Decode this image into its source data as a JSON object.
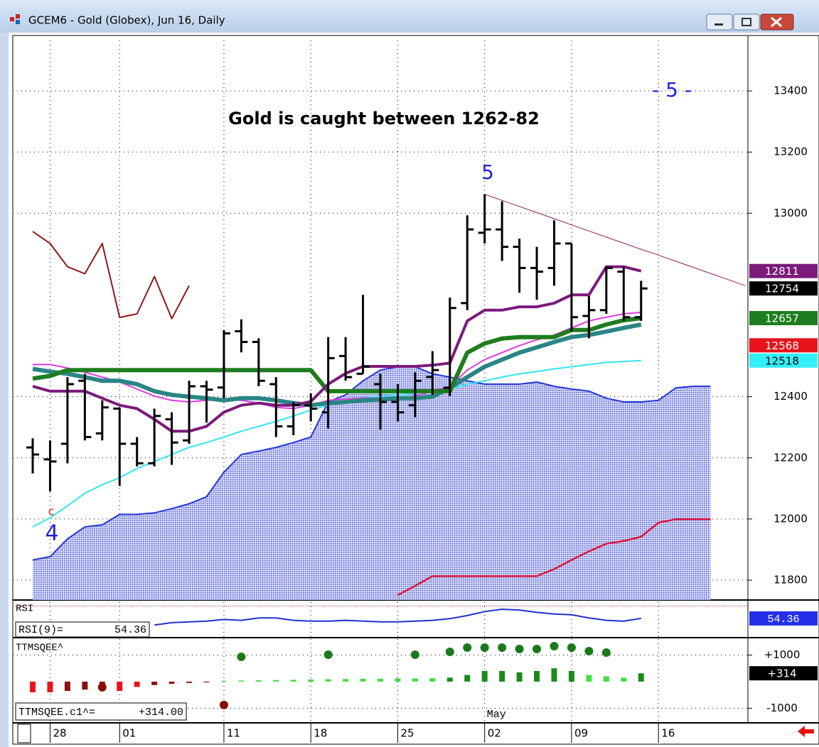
{
  "window": {
    "title": "GCEM6 - Gold (Globex), Jun 16, Daily"
  },
  "chart_data": [
    {
      "type": "ohlc",
      "categories": [
        null,
        "28",
        null,
        null,
        null,
        "01",
        null,
        null,
        null,
        null,
        null,
        "11",
        null,
        null,
        null,
        null,
        "18",
        null,
        null,
        null,
        null,
        "25",
        null,
        null,
        null,
        null,
        "02",
        null,
        null,
        null,
        null,
        "09",
        null,
        null,
        null,
        null,
        "16",
        null,
        null,
        null,
        null,
        null
      ],
      "month_label": "May",
      "open": [
        12234,
        12195,
        12246,
        12452,
        12280,
        12361,
        12246,
        12182,
        12326,
        12257,
        12434,
        12430,
        12614,
        12579,
        12441,
        12303,
        12372,
        12349,
        12533,
        12475,
        12441,
        12383,
        12372,
        12464,
        12429,
        12706,
        12936,
        12947,
        12890,
        12821,
        12821,
        12901,
        12664,
        12683,
        12809,
        12660,
        null,
        null,
        null,
        null,
        null,
        null
      ],
      "high": [
        12264,
        12257,
        12464,
        12475,
        12388,
        12365,
        12268,
        12361,
        12349,
        12452,
        12452,
        12618,
        12653,
        12591,
        12464,
        12383,
        12411,
        12595,
        12595,
        12733,
        12475,
        12441,
        12480,
        12549,
        12724,
        12993,
        13062,
        13039,
        12917,
        12890,
        12977,
        12901,
        12729,
        12825,
        12825,
        12779,
        null,
        null,
        null,
        null,
        null,
        null
      ],
      "low": [
        12149,
        12090,
        12182,
        12257,
        12257,
        12108,
        12172,
        12172,
        12177,
        12246,
        12315,
        12395,
        12545,
        12434,
        12268,
        12274,
        12319,
        12296,
        12452,
        12475,
        12292,
        12319,
        12333,
        12406,
        12402,
        12683,
        12901,
        12844,
        12740,
        12717,
        12763,
        12614,
        12591,
        12671,
        12648,
        12648,
        null,
        null,
        null,
        null,
        null,
        null
      ],
      "close": [
        12211,
        12188,
        12441,
        12268,
        12365,
        12246,
        12182,
        12337,
        12250,
        12434,
        12423,
        12607,
        12579,
        12452,
        12303,
        12372,
        12361,
        12526,
        12464,
        12498,
        12383,
        12349,
        12452,
        12487,
        12690,
        12947,
        12947,
        12890,
        12821,
        12809,
        12901,
        12660,
        12683,
        12821,
        12660,
        12754,
        null,
        null,
        null,
        null,
        null,
        null
      ],
      "bar_color": "#000000",
      "ylim": [
        11735,
        13565
      ],
      "yticks": [
        11800,
        12000,
        12200,
        12400,
        13000,
        13200,
        13400
      ],
      "grid": true,
      "cloud": {
        "color": "#2436d8",
        "values": [
          11866,
          11877,
          11935,
          11974,
          11981,
          12015,
          12015,
          12020,
          12034,
          12050,
          12073,
          12153,
          12211,
          12222,
          12234,
          12250,
          12268,
          12383,
          12406,
          12452,
          12487,
          12498,
          12498,
          12475,
          12464,
          12452,
          12441,
          12441,
          12441,
          12448,
          12434,
          12425,
          12418,
          12395,
          12383,
          12383,
          12388,
          12429,
          12434,
          12434,
          null,
          null
        ]
      },
      "lines": [
        {
          "color": "#33e6f2",
          "width": 2,
          "values": [
            11974,
            12004,
            12043,
            12084,
            12112,
            12135,
            12165,
            12188,
            12211,
            12234,
            12250,
            12268,
            12287,
            12303,
            12319,
            12337,
            12356,
            12372,
            12383,
            12395,
            12402,
            12406,
            12411,
            12416,
            12425,
            12441,
            12452,
            12464,
            12475,
            12482,
            12491,
            12498,
            12505,
            12512,
            12515,
            12518,
            null,
            null,
            null,
            null,
            null,
            null
          ]
        },
        {
          "color": "#e03ae0",
          "width": 2,
          "values": [
            12505,
            12505,
            12494,
            12480,
            12464,
            12448,
            12425,
            12402,
            12388,
            12383,
            12388,
            12390,
            12388,
            12379,
            12365,
            12361,
            12372,
            12388,
            12393,
            12395,
            12395,
            12395,
            12402,
            12418,
            12434,
            12487,
            12521,
            12544,
            12567,
            12586,
            12602,
            12625,
            12648,
            12660,
            12671,
            12676,
            null,
            null,
            null,
            null,
            null,
            null
          ]
        },
        {
          "color": "#e0143c",
          "width": 2.5,
          "values": [
            null,
            null,
            null,
            null,
            null,
            null,
            null,
            null,
            null,
            null,
            null,
            null,
            null,
            null,
            null,
            null,
            null,
            null,
            null,
            null,
            null,
            11751,
            11781,
            11813,
            11813,
            11813,
            11813,
            11813,
            11813,
            11813,
            11836,
            11866,
            11894,
            11919,
            11928,
            11942,
            11988,
            11999,
            11999,
            11999,
            null,
            null
          ]
        },
        {
          "color": "#2a8585",
          "width": 6,
          "values": [
            12491,
            12482,
            12475,
            12464,
            12452,
            12452,
            12441,
            12418,
            12406,
            12400,
            12395,
            12388,
            12395,
            12395,
            12388,
            12379,
            12372,
            12379,
            12383,
            12388,
            12390,
            12395,
            12395,
            12400,
            12429,
            12464,
            12498,
            12521,
            12544,
            12561,
            12579,
            12595,
            12602,
            12613,
            12625,
            12636,
            null,
            null,
            null,
            null,
            null,
            null
          ]
        },
        {
          "color": "#1e7d1e",
          "width": 6,
          "values": [
            12459,
            12468,
            12487,
            12487,
            12487,
            12487,
            12487,
            12487,
            12487,
            12487,
            12487,
            12487,
            12487,
            12487,
            12487,
            12487,
            12487,
            12418,
            12418,
            12418,
            12418,
            12418,
            12418,
            12418,
            12418,
            12544,
            12574,
            12590,
            12595,
            12595,
            12595,
            12618,
            12618,
            12636,
            12650,
            12657,
            null,
            null,
            null,
            null,
            null,
            null
          ]
        },
        {
          "color": "#7b1a7b",
          "width": 4,
          "values": [
            12434,
            12418,
            12418,
            12418,
            12395,
            12372,
            12361,
            12326,
            12287,
            12287,
            12303,
            12349,
            12372,
            12379,
            12372,
            12372,
            12384,
            12441,
            12476,
            12499,
            12499,
            12499,
            12499,
            12503,
            12510,
            12648,
            12683,
            12683,
            12694,
            12694,
            12706,
            12733,
            12733,
            12825,
            12825,
            12811,
            null,
            null,
            null,
            null,
            null,
            null
          ]
        },
        {
          "color": "#8b1a1a",
          "width": 2,
          "values": [
            12940,
            12901,
            12825,
            12802,
            12901,
            12659,
            12671,
            12793,
            12655,
            12763,
            null,
            null,
            null,
            null,
            null,
            null,
            null,
            null,
            null,
            null,
            null,
            null,
            null,
            null,
            null,
            null,
            null,
            null,
            null,
            null,
            null,
            null,
            null,
            null,
            null,
            null,
            null,
            null,
            null,
            null,
            null,
            null
          ]
        },
        {
          "color": "#8b2048",
          "width": 1,
          "values": [
            null,
            null,
            null,
            null,
            null,
            null,
            null,
            null,
            null,
            null,
            null,
            null,
            null,
            null,
            null,
            null,
            null,
            null,
            null,
            null,
            null,
            null,
            null,
            null,
            null,
            null,
            13062,
            13042,
            13022,
            13002,
            12982,
            12962,
            12942,
            12922,
            12902,
            12882,
            12863,
            12843,
            12823,
            12803,
            12783,
            12763
          ]
        }
      ],
      "annotations": [
        "Gold is caught between 1262-82",
        "- 5 -",
        "5",
        "4",
        "c"
      ],
      "price_labels": [
        {
          "value": 12811,
          "color": "#7b1a7b",
          "text_color": "#ffffff"
        },
        {
          "value": 12754,
          "color": "#000000",
          "text_color": "#ffffff"
        },
        {
          "value": 12657,
          "color": "#1e7d1e",
          "text_color": "#ffffff"
        },
        {
          "value": 12568,
          "color": "#e8141c",
          "text_color": "#ffffff"
        },
        {
          "value": 12518,
          "color": "#33f0f6",
          "text_color": "#000000"
        }
      ]
    },
    {
      "type": "line",
      "label": "RSI",
      "readout": "RSI(9)=",
      "color": "#2030d0",
      "overbought": 70,
      "overbought_color": "#e01010",
      "values": [
        null,
        null,
        null,
        null,
        null,
        null,
        null,
        46,
        49,
        50,
        51,
        53,
        52,
        55,
        55,
        52,
        51,
        51,
        52,
        51,
        50,
        50,
        51,
        52,
        54,
        58,
        63,
        66,
        65,
        62,
        60,
        59,
        55,
        52,
        51,
        54.36,
        null,
        null,
        null,
        null,
        null,
        null
      ],
      "ylim": [
        30,
        75
      ]
    },
    {
      "type": "histogram",
      "label": "TTMSQEE^",
      "readout": "TTMSQEE.c1^=",
      "readout_value_label": "+314.00",
      "values": [
        -400,
        -400,
        -350,
        -300,
        -200,
        -350,
        -200,
        -130,
        -80,
        -50,
        -30,
        30,
        40,
        50,
        60,
        70,
        80,
        90,
        100,
        110,
        110,
        120,
        120,
        130,
        150,
        250,
        400,
        400,
        350,
        400,
        500,
        400,
        250,
        200,
        150,
        314,
        null,
        null,
        null,
        null,
        null,
        null
      ],
      "value_labels": [
        null,
        null,
        null,
        null,
        null,
        null,
        null,
        null,
        null,
        null,
        null,
        null,
        null,
        null,
        null,
        null,
        null,
        null,
        null,
        null,
        null,
        null,
        null,
        null,
        null,
        null,
        null,
        null,
        null,
        null,
        null,
        null,
        null,
        null,
        null,
        "+314",
        null,
        null,
        null,
        null,
        null,
        null
      ],
      "colors": [
        "#e8141c",
        "#e8141c",
        "#8b1010",
        "#8b1010",
        "#8b1010",
        "#e8141c",
        "#e8141c",
        "#8b1010",
        "#8b1010",
        "#8b1010",
        "#8b1010",
        "#44dd44",
        "#44dd44",
        "#44dd44",
        "#44dd44",
        "#44dd44",
        "#44dd44",
        "#44dd44",
        "#44dd44",
        "#44dd44",
        "#44dd44",
        "#44dd44",
        "#44dd44",
        "#44dd44",
        "#1a8a1a",
        "#1a8a1a",
        "#1a8a1a",
        "#1a8a1a",
        "#1a8a1a",
        "#1a8a1a",
        "#1a8a1a",
        "#1a8a1a",
        "#44dd44",
        "#44dd44",
        "#44dd44",
        "#1a8a1a",
        null,
        null,
        null,
        null,
        null,
        null
      ],
      "dots": [
        {
          "color": "#1a7a1a",
          "values": [
            null,
            null,
            null,
            null,
            null,
            null,
            null,
            null,
            null,
            null,
            null,
            null,
            933,
            null,
            null,
            null,
            null,
            1013,
            null,
            null,
            null,
            null,
            1013,
            null,
            1120,
            1280,
            1280,
            1280,
            1227,
            1227,
            1333,
            1280,
            1147,
            1093,
            null,
            null,
            null,
            null,
            null,
            null,
            null,
            null
          ]
        },
        {
          "color": "#8b0a0a",
          "values": [
            null,
            null,
            null,
            null,
            -213,
            null,
            null,
            null,
            null,
            null,
            null,
            -880,
            null,
            null,
            null,
            null,
            null,
            null,
            null,
            null,
            null,
            null,
            null,
            null,
            null,
            null,
            null,
            null,
            null,
            null,
            null,
            null,
            null,
            null,
            null,
            null,
            null,
            null,
            null,
            null,
            null,
            null
          ]
        }
      ],
      "ylim": [
        -1550,
        1600
      ],
      "yticks": [
        {
          "value": 1000,
          "label": "+1000"
        },
        {
          "value": -1000,
          "label": "-1000"
        }
      ]
    }
  ]
}
